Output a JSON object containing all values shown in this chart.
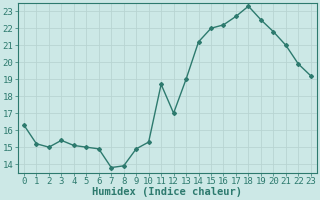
{
  "x": [
    0,
    1,
    2,
    3,
    4,
    5,
    6,
    7,
    8,
    9,
    10,
    11,
    12,
    13,
    14,
    15,
    16,
    17,
    18,
    19,
    20,
    21,
    22,
    23
  ],
  "y": [
    16.3,
    15.2,
    15.0,
    15.4,
    15.1,
    15.0,
    14.9,
    13.8,
    13.9,
    14.9,
    15.3,
    18.7,
    17.0,
    19.0,
    21.2,
    22.0,
    22.2,
    22.7,
    23.3,
    22.5,
    21.8,
    21.0,
    19.9,
    19.2
  ],
  "line_color": "#2d7a6e",
  "bg_color": "#cce8e6",
  "grid_color": "#b8d4d2",
  "xlabel": "Humidex (Indice chaleur)",
  "ylim": [
    13.5,
    23.5
  ],
  "xlim": [
    -0.5,
    23.5
  ],
  "yticks": [
    14,
    15,
    16,
    17,
    18,
    19,
    20,
    21,
    22,
    23
  ],
  "xticks": [
    0,
    1,
    2,
    3,
    4,
    5,
    6,
    7,
    8,
    9,
    10,
    11,
    12,
    13,
    14,
    15,
    16,
    17,
    18,
    19,
    20,
    21,
    22,
    23
  ],
  "marker": "D",
  "marker_size": 2.0,
  "line_width": 1.0,
  "xlabel_fontsize": 7.5,
  "tick_fontsize": 6.5,
  "font_family": "monospace"
}
